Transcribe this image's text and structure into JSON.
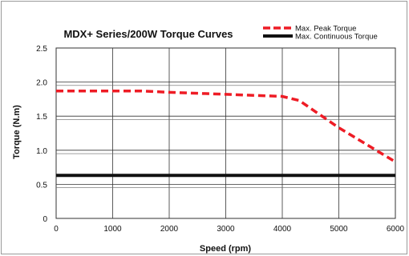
{
  "chart_data": {
    "type": "line",
    "title": "MDX+ Series/200W Torque Curves",
    "xlabel": "Speed (rpm)",
    "ylabel": "Torque (N.m)",
    "xlim": [
      0,
      6000
    ],
    "ylim": [
      0,
      2.5
    ],
    "xticks": [
      0,
      1000,
      2000,
      3000,
      4000,
      5000,
      6000
    ],
    "yticks": [
      0,
      0.5,
      1.0,
      1.5,
      2.0,
      2.5
    ],
    "xtick_labels": [
      "0",
      "1000",
      "2000",
      "3000",
      "4000",
      "5000",
      "6000"
    ],
    "ytick_labels": [
      "0",
      "0.5",
      "1.0",
      "1.5",
      "2.0",
      "2.5"
    ],
    "grid": true,
    "legend_position": "top-right",
    "series": [
      {
        "name": "Max. Peak Torque",
        "style": "dashed",
        "color": "#ee1c25",
        "x": [
          0,
          1000,
          1500,
          2000,
          3000,
          4000,
          4300,
          5000,
          6000
        ],
        "y": [
          1.87,
          1.87,
          1.87,
          1.85,
          1.82,
          1.79,
          1.73,
          1.33,
          0.83
        ]
      },
      {
        "name": "Max. Continuous Torque",
        "style": "solid",
        "color": "#111111",
        "x": [
          0,
          6000
        ],
        "y": [
          0.63,
          0.63
        ]
      }
    ]
  }
}
